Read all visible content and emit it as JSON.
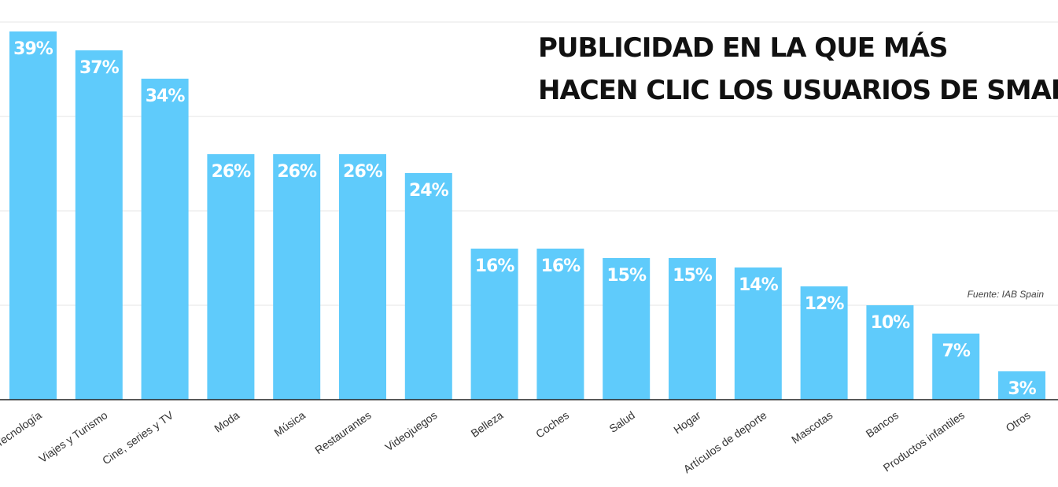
{
  "chart_data": {
    "type": "bar",
    "title_lines": [
      "PUBLICIDAD EN LA QUE MÁS",
      "HACEN CLIC LOS USUARIOS DE SMARTPHONES"
    ],
    "source": "Fuente: IAB Spain",
    "categories": [
      "Tecnología",
      "Viajes y Turismo",
      "Cine, series y TV",
      "Moda",
      "Música",
      "Restaurantes",
      "Videojuegos",
      "Belleza",
      "Coches",
      "Salud",
      "Hogar",
      "Artículos de deporte",
      "Mascotas",
      "Bancos",
      "Productos infantiles",
      "Otros"
    ],
    "values": [
      39,
      37,
      34,
      26,
      26,
      26,
      24,
      16,
      16,
      15,
      15,
      14,
      12,
      10,
      7,
      3
    ],
    "value_labels": [
      "39%",
      "37%",
      "34%",
      "26%",
      "26%",
      "26%",
      "24%",
      "16%",
      "16%",
      "15%",
      "15%",
      "14%",
      "12%",
      "10%",
      "7%",
      "3%"
    ],
    "ylim": [
      0,
      40
    ],
    "grid": true,
    "bar_color": "#5fcbfb"
  }
}
